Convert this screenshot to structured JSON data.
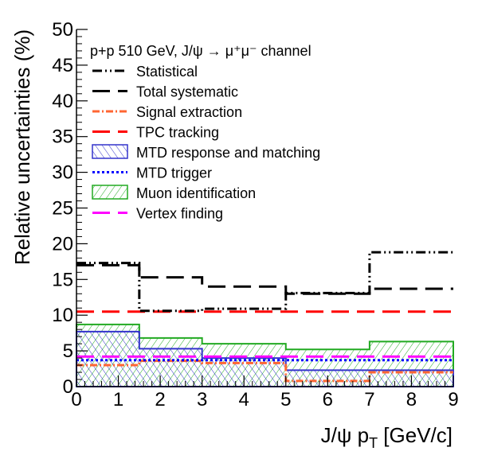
{
  "chart_data": {
    "type": "line",
    "xlabel": "J/ψ p",
    "xlabel_sub": "T",
    "xlabel_unit": " [GeV/c]",
    "ylabel": "Relative uncertainties (%)",
    "header": "p+p 510 GeV, J/ψ → μ⁺μ⁻ channel",
    "xlim": [
      0,
      9
    ],
    "ylim": [
      0,
      50
    ],
    "x_ticks": [
      "0",
      "1",
      "2",
      "3",
      "4",
      "5",
      "6",
      "7",
      "8",
      "9"
    ],
    "y_ticks": [
      "0",
      "5",
      "10",
      "15",
      "20",
      "25",
      "30",
      "35",
      "40",
      "45",
      "50"
    ],
    "bin_edges": [
      0,
      1.5,
      3,
      5,
      7,
      9
    ],
    "series": [
      {
        "name": "Statistical",
        "values": [
          17.3,
          10.6,
          10.9,
          13.1,
          18.8
        ],
        "color": "#000000",
        "style": "dashdot"
      },
      {
        "name": "Total systematic",
        "values": [
          17.0,
          15.3,
          14.0,
          13.0,
          13.7
        ],
        "color": "#000000",
        "style": "longdash"
      },
      {
        "name": "Signal extraction",
        "values": [
          3.0,
          3.6,
          3.3,
          0.8,
          2.0
        ],
        "color": "#ff6633",
        "style": "dotdash"
      },
      {
        "name": "TPC tracking",
        "values": [
          10.5,
          10.5,
          10.5,
          10.5,
          10.5
        ],
        "color": "#ff0000",
        "style": "longdash"
      },
      {
        "name": "MTD response and matching",
        "values": [
          7.7,
          5.3,
          4.0,
          2.3,
          2.3
        ],
        "color": "#3333cc",
        "style": "hatch-blue"
      },
      {
        "name": "MTD trigger",
        "values": [
          3.7,
          3.7,
          3.7,
          3.7,
          3.7
        ],
        "color": "#0000ff",
        "style": "dotted"
      },
      {
        "name": "Muon identification",
        "values": [
          8.7,
          6.8,
          6.0,
          5.2,
          6.3
        ],
        "color": "#22aa22",
        "style": "hatch-green"
      },
      {
        "name": "Vertex finding",
        "values": [
          4.2,
          4.2,
          4.2,
          4.2,
          4.2
        ],
        "color": "#ff00ff",
        "style": "longdash"
      }
    ]
  }
}
